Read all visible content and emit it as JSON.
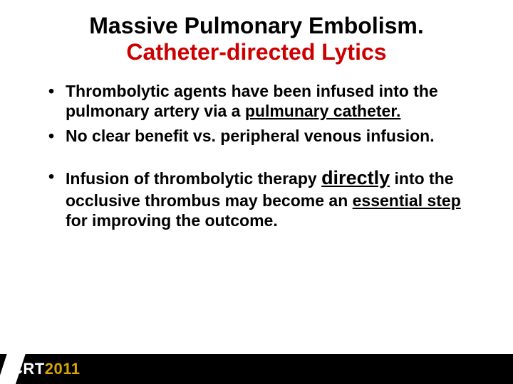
{
  "title": {
    "line1": "Massive Pulmonary Embolism.",
    "line2": "Catheter-directed Lytics"
  },
  "bullets": {
    "b1_pre": "Thrombolytic agents have been infused into the pulmonary artery via a ",
    "b1_underlined": "pulmunary catheter.",
    "b2": "No clear benefit vs. peripheral venous infusion.",
    "b3_pre": "Infusion of thrombolytic therapy ",
    "b3_directly": "directly",
    "b3_mid": " into the occlusive thrombus may become an ",
    "b3_ess": "essential step ",
    "b3_post": "for improving the outcome."
  },
  "footer": {
    "brand": "CRT",
    "year": "2011"
  },
  "colors": {
    "title_red": "#cc0000",
    "text": "#000000",
    "footer_bg": "#000000",
    "footer_year": "#d9a300",
    "background": "#ffffff"
  }
}
